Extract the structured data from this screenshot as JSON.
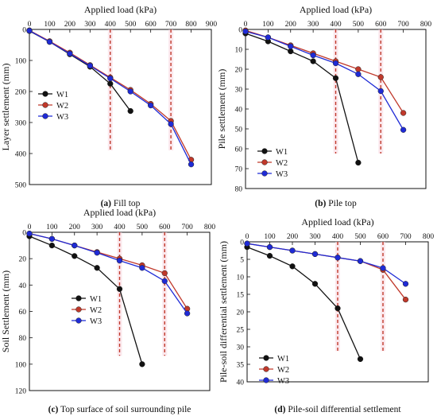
{
  "chart_data": [
    {
      "type": "line",
      "caption_bold": "(a)",
      "caption_text": " Fill top",
      "xlabel": "Applied load (kPa)",
      "ylabel": "Layer settlement (mm)",
      "xlim": [
        0,
        900
      ],
      "ylim": [
        0,
        500
      ],
      "y_inverted": true,
      "xticks": [
        0,
        100,
        200,
        300,
        400,
        500,
        600,
        700,
        800,
        900
      ],
      "yticks": [
        0,
        100,
        200,
        300,
        400,
        500
      ],
      "vlines": [
        400,
        700
      ],
      "legend_position": "center-left",
      "series": [
        {
          "name": "W1",
          "color": "#111111",
          "x": [
            0,
            100,
            200,
            300,
            400,
            500
          ],
          "y": [
            5,
            40,
            80,
            120,
            175,
            263
          ]
        },
        {
          "name": "W2",
          "color": "#c0392b",
          "x": [
            0,
            100,
            200,
            300,
            400,
            500,
            600,
            700,
            800
          ],
          "y": [
            3,
            38,
            75,
            115,
            155,
            195,
            240,
            295,
            420
          ]
        },
        {
          "name": "W3",
          "color": "#1f2bd6",
          "x": [
            0,
            100,
            200,
            300,
            400,
            500,
            600,
            700,
            800
          ],
          "y": [
            4,
            40,
            78,
            117,
            158,
            200,
            245,
            305,
            435
          ]
        }
      ]
    },
    {
      "type": "line",
      "caption_bold": "(b)",
      "caption_text": " Pile top",
      "xlabel": "Applied load (kPa)",
      "ylabel": "Pile settlement (mm)",
      "xlim": [
        0,
        800
      ],
      "ylim": [
        0,
        80
      ],
      "y_inverted": true,
      "xticks": [
        0,
        100,
        200,
        300,
        400,
        500,
        600,
        700,
        800
      ],
      "yticks": [
        0,
        10,
        20,
        30,
        40,
        50,
        60,
        70,
        80
      ],
      "vlines": [
        400,
        600
      ],
      "legend_position": "bottom-left",
      "series": [
        {
          "name": "W1",
          "color": "#111111",
          "x": [
            0,
            100,
            200,
            300,
            400,
            500
          ],
          "y": [
            2,
            6,
            11,
            16,
            24.5,
            67
          ]
        },
        {
          "name": "W2",
          "color": "#c0392b",
          "x": [
            0,
            100,
            200,
            300,
            400,
            500,
            600,
            700
          ],
          "y": [
            0.5,
            4,
            8,
            12,
            16,
            20,
            24,
            42
          ]
        },
        {
          "name": "W3",
          "color": "#1f2bd6",
          "x": [
            0,
            100,
            200,
            300,
            400,
            500,
            600,
            700
          ],
          "y": [
            1,
            4,
            8.5,
            13,
            17,
            22.5,
            31,
            50.5
          ]
        }
      ]
    },
    {
      "type": "line",
      "caption_bold": "(c)",
      "caption_text": " Top surface of soil surrounding pile",
      "xlabel": "Applied load (kPa)",
      "ylabel": "Soil Settlement (mm)",
      "xlim": [
        0,
        800
      ],
      "ylim": [
        0,
        120
      ],
      "y_inverted": true,
      "xticks": [
        0,
        100,
        200,
        300,
        400,
        500,
        600,
        700,
        800
      ],
      "yticks": [
        0,
        20,
        40,
        60,
        80,
        100,
        120
      ],
      "vlines": [
        400,
        600
      ],
      "legend_position": "center",
      "series": [
        {
          "name": "W1",
          "color": "#111111",
          "x": [
            0,
            100,
            200,
            300,
            400,
            500
          ],
          "y": [
            3,
            10,
            18,
            27,
            43,
            100
          ]
        },
        {
          "name": "W2",
          "color": "#c0392b",
          "x": [
            0,
            100,
            200,
            300,
            400,
            500,
            600,
            700
          ],
          "y": [
            1,
            5,
            10,
            15,
            20,
            25,
            31,
            58
          ]
        },
        {
          "name": "W3",
          "color": "#1f2bd6",
          "x": [
            0,
            100,
            200,
            300,
            400,
            500,
            600,
            700
          ],
          "y": [
            1,
            5,
            10,
            15.5,
            21.5,
            27,
            37,
            61.5
          ]
        }
      ]
    },
    {
      "type": "line",
      "caption_bold": "(d)",
      "caption_text": " Pile-soil differential settlement",
      "xlabel": "Applied load (kPa)",
      "ylabel": "Pile-soil differential settlement (mm)",
      "xlim": [
        0,
        800
      ],
      "ylim": [
        0,
        40
      ],
      "y_inverted": true,
      "xticks": [
        0,
        100,
        200,
        300,
        400,
        500,
        600,
        700,
        800
      ],
      "yticks": [
        0,
        5,
        10,
        15,
        20,
        25,
        30,
        35,
        40
      ],
      "vlines": [
        400,
        600
      ],
      "legend_position": "bottom-left",
      "series": [
        {
          "name": "W1",
          "color": "#111111",
          "x": [
            0,
            100,
            200,
            300,
            400,
            500
          ],
          "y": [
            1.5,
            4,
            7,
            12,
            19,
            33.5
          ]
        },
        {
          "name": "W2",
          "color": "#c0392b",
          "x": [
            0,
            100,
            200,
            300,
            400,
            500,
            600,
            700
          ],
          "y": [
            0.5,
            1.5,
            2.5,
            3.5,
            4.5,
            5.5,
            8,
            16.5
          ]
        },
        {
          "name": "W3",
          "color": "#1f2bd6",
          "x": [
            0,
            100,
            200,
            300,
            400,
            500,
            600,
            700
          ],
          "y": [
            0.5,
            1.5,
            2.5,
            3.5,
            4.5,
            5.5,
            7.5,
            12
          ]
        }
      ]
    }
  ]
}
